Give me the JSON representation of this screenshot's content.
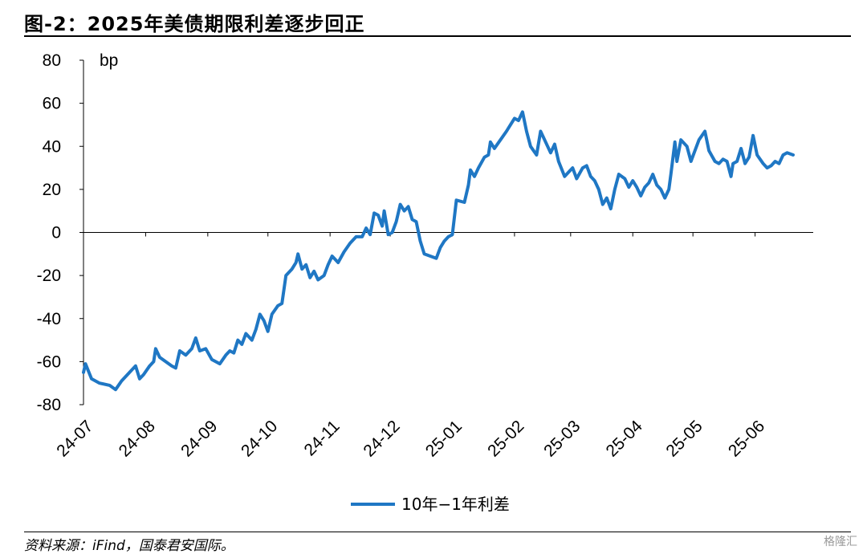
{
  "header": {
    "title": "图-2：2025年美债期限利差逐步回正"
  },
  "footer": {
    "source": "资料来源：iFind，国泰君安国际。",
    "watermark": "格隆汇"
  },
  "chart_data": {
    "type": "line",
    "ylabel": "bp",
    "ylim": [
      -80,
      80
    ],
    "yticks": [
      80,
      60,
      40,
      20,
      0,
      -20,
      -40,
      -60,
      -80
    ],
    "xlim": [
      "2024-07-01",
      "2025-06-30"
    ],
    "xticks": [
      "24-07",
      "24-08",
      "24-09",
      "24-10",
      "24-11",
      "24-12",
      "25-01",
      "25-02",
      "25-03",
      "25-04",
      "25-05",
      "25-06"
    ],
    "grid": false,
    "legend": "bottom",
    "series": [
      {
        "name": "10年−1年利差",
        "color": "#1F77C4",
        "points": [
          [
            "2024-07-01",
            -65
          ],
          [
            "2024-07-02",
            -61
          ],
          [
            "2024-07-05",
            -68
          ],
          [
            "2024-07-09",
            -70
          ],
          [
            "2024-07-14",
            -71
          ],
          [
            "2024-07-17",
            -73
          ],
          [
            "2024-07-20",
            -69
          ],
          [
            "2024-07-24",
            -65
          ],
          [
            "2024-07-27",
            -62
          ],
          [
            "2024-07-29",
            -68
          ],
          [
            "2024-07-31",
            -66
          ],
          [
            "2024-08-03",
            -62
          ],
          [
            "2024-08-05",
            -60
          ],
          [
            "2024-08-06",
            -54
          ],
          [
            "2024-08-08",
            -58
          ],
          [
            "2024-08-11",
            -60
          ],
          [
            "2024-08-14",
            -62
          ],
          [
            "2024-08-16",
            -63
          ],
          [
            "2024-08-18",
            -55
          ],
          [
            "2024-08-21",
            -57
          ],
          [
            "2024-08-24",
            -54
          ],
          [
            "2024-08-26",
            -49
          ],
          [
            "2024-08-28",
            -55
          ],
          [
            "2024-08-31",
            -54
          ],
          [
            "2024-09-03",
            -59
          ],
          [
            "2024-09-07",
            -61
          ],
          [
            "2024-09-10",
            -57
          ],
          [
            "2024-09-12",
            -55
          ],
          [
            "2024-09-14",
            -56
          ],
          [
            "2024-09-16",
            -50
          ],
          [
            "2024-09-18",
            -52
          ],
          [
            "2024-09-20",
            -47
          ],
          [
            "2024-09-23",
            -50
          ],
          [
            "2024-09-25",
            -45
          ],
          [
            "2024-09-27",
            -38
          ],
          [
            "2024-09-29",
            -41
          ],
          [
            "2024-10-01",
            -46
          ],
          [
            "2024-10-03",
            -38
          ],
          [
            "2024-10-06",
            -34
          ],
          [
            "2024-10-08",
            -33
          ],
          [
            "2024-10-10",
            -20
          ],
          [
            "2024-10-13",
            -17
          ],
          [
            "2024-10-15",
            -14
          ],
          [
            "2024-10-16",
            -10
          ],
          [
            "2024-10-18",
            -17
          ],
          [
            "2024-10-20",
            -15
          ],
          [
            "2024-10-22",
            -21
          ],
          [
            "2024-10-24",
            -18
          ],
          [
            "2024-10-26",
            -22
          ],
          [
            "2024-10-29",
            -20
          ],
          [
            "2024-10-31",
            -15
          ],
          [
            "2024-11-02",
            -11
          ],
          [
            "2024-11-05",
            -14
          ],
          [
            "2024-11-08",
            -9
          ],
          [
            "2024-11-11",
            -5
          ],
          [
            "2024-11-14",
            -2
          ],
          [
            "2024-11-17",
            -2
          ],
          [
            "2024-11-19",
            2
          ],
          [
            "2024-11-21",
            -1
          ],
          [
            "2024-11-23",
            9
          ],
          [
            "2024-11-25",
            8
          ],
          [
            "2024-11-27",
            3
          ],
          [
            "2024-11-28",
            10
          ],
          [
            "2024-11-30",
            -1
          ],
          [
            "2024-12-02",
            0
          ],
          [
            "2024-12-04",
            5
          ],
          [
            "2024-12-06",
            13
          ],
          [
            "2024-12-08",
            10
          ],
          [
            "2024-12-10",
            12
          ],
          [
            "2024-12-12",
            6
          ],
          [
            "2024-12-14",
            5
          ],
          [
            "2024-12-16",
            -4
          ],
          [
            "2024-12-18",
            -10
          ],
          [
            "2024-12-21",
            -11
          ],
          [
            "2024-12-24",
            -12
          ],
          [
            "2024-12-26",
            -7
          ],
          [
            "2024-12-28",
            -4
          ],
          [
            "2024-12-30",
            -2
          ],
          [
            "2025-01-01",
            -1
          ],
          [
            "2025-01-03",
            15
          ],
          [
            "2025-01-07",
            14
          ],
          [
            "2025-01-09",
            22
          ],
          [
            "2025-01-10",
            29
          ],
          [
            "2025-01-12",
            26
          ],
          [
            "2025-01-14",
            30
          ],
          [
            "2025-01-17",
            35
          ],
          [
            "2025-01-19",
            36
          ],
          [
            "2025-01-20",
            42
          ],
          [
            "2025-01-22",
            39
          ],
          [
            "2025-01-25",
            43
          ],
          [
            "2025-01-28",
            47
          ],
          [
            "2025-01-30",
            50
          ],
          [
            "2025-02-01",
            53
          ],
          [
            "2025-02-03",
            52
          ],
          [
            "2025-02-05",
            56
          ],
          [
            "2025-02-07",
            47
          ],
          [
            "2025-02-09",
            40
          ],
          [
            "2025-02-12",
            36
          ],
          [
            "2025-02-14",
            47
          ],
          [
            "2025-02-16",
            43
          ],
          [
            "2025-02-19",
            37
          ],
          [
            "2025-02-21",
            41
          ],
          [
            "2025-02-23",
            33
          ],
          [
            "2025-02-26",
            26
          ],
          [
            "2025-02-28",
            28
          ],
          [
            "2025-03-02",
            30
          ],
          [
            "2025-03-04",
            25
          ],
          [
            "2025-03-07",
            30
          ],
          [
            "2025-03-09",
            31
          ],
          [
            "2025-03-11",
            26
          ],
          [
            "2025-03-13",
            24
          ],
          [
            "2025-03-15",
            20
          ],
          [
            "2025-03-17",
            13
          ],
          [
            "2025-03-19",
            16
          ],
          [
            "2025-03-21",
            11
          ],
          [
            "2025-03-23",
            20
          ],
          [
            "2025-03-25",
            27
          ],
          [
            "2025-03-28",
            25
          ],
          [
            "2025-03-30",
            21
          ],
          [
            "2025-04-01",
            24
          ],
          [
            "2025-04-03",
            21
          ],
          [
            "2025-04-05",
            17
          ],
          [
            "2025-04-07",
            21
          ],
          [
            "2025-04-09",
            23
          ],
          [
            "2025-04-11",
            27
          ],
          [
            "2025-04-13",
            22
          ],
          [
            "2025-04-15",
            20
          ],
          [
            "2025-04-17",
            16
          ],
          [
            "2025-04-19",
            20
          ],
          [
            "2025-04-20",
            27
          ],
          [
            "2025-04-22",
            42
          ],
          [
            "2025-04-23",
            33
          ],
          [
            "2025-04-25",
            43
          ],
          [
            "2025-04-28",
            40
          ],
          [
            "2025-04-30",
            33
          ],
          [
            "2025-05-02",
            38
          ],
          [
            "2025-05-04",
            43
          ],
          [
            "2025-05-07",
            47
          ],
          [
            "2025-05-09",
            38
          ],
          [
            "2025-05-12",
            33
          ],
          [
            "2025-05-14",
            32
          ],
          [
            "2025-05-16",
            34
          ],
          [
            "2025-05-18",
            33
          ],
          [
            "2025-05-20",
            26
          ],
          [
            "2025-05-21",
            32
          ],
          [
            "2025-05-23",
            33
          ],
          [
            "2025-05-25",
            39
          ],
          [
            "2025-05-27",
            32
          ],
          [
            "2025-05-29",
            35
          ],
          [
            "2025-05-31",
            45
          ],
          [
            "2025-06-02",
            36
          ],
          [
            "2025-06-05",
            32
          ],
          [
            "2025-06-07",
            30
          ],
          [
            "2025-06-09",
            31
          ],
          [
            "2025-06-11",
            33
          ],
          [
            "2025-06-13",
            32
          ],
          [
            "2025-06-15",
            36
          ],
          [
            "2025-06-17",
            37
          ],
          [
            "2025-06-20",
            36
          ]
        ]
      }
    ]
  }
}
